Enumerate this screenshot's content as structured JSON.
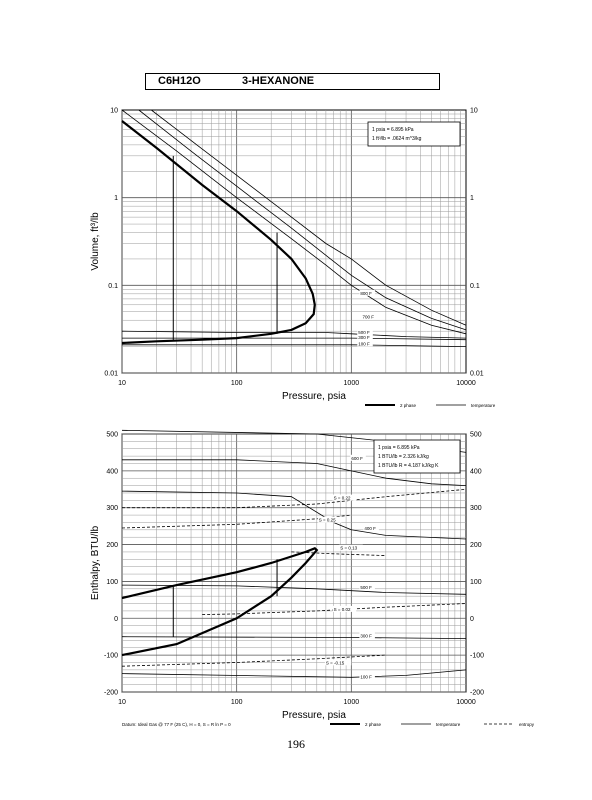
{
  "header": {
    "formula": "C6H12O",
    "name": "3-HEXANONE"
  },
  "page_number": "196",
  "chart_data": [
    {
      "type": "line",
      "ylabel": "Volume, ft^3/lb",
      "xlabel": "Pressure,  psia",
      "xscale": "log",
      "yscale": "log",
      "xlim": [
        10,
        10000
      ],
      "ylim": [
        0.01,
        10
      ],
      "x_ticks": [
        "10",
        "100",
        "1000",
        "10000"
      ],
      "y_ticks": [
        "0.01",
        "0.1",
        "1",
        "10"
      ],
      "grid": true,
      "conversion_box": [
        "1 psia  =  6.895 kPa",
        "1 ft^3/lb  =  .0624 m^3/kg"
      ],
      "legend": [
        {
          "label": "2 phase",
          "style": "thick"
        },
        {
          "label": "temperature",
          "style": "thin"
        }
      ],
      "series": [
        {
          "name": "2 phase",
          "points": [
            [
              10,
              7.5
            ],
            [
              20,
              3.7
            ],
            [
              50,
              1.4
            ],
            [
              100,
              0.7
            ],
            [
              200,
              0.33
            ],
            [
              300,
              0.2
            ],
            [
              400,
              0.12
            ],
            [
              460,
              0.08
            ],
            [
              480,
              0.06
            ],
            [
              470,
              0.047
            ],
            [
              400,
              0.037
            ],
            [
              300,
              0.031
            ],
            [
              200,
              0.028
            ],
            [
              100,
              0.025
            ],
            [
              50,
              0.024
            ],
            [
              20,
              0.023
            ],
            [
              10,
              0.022
            ]
          ]
        },
        {
          "name": "600 F",
          "points": [
            [
              10,
              10
            ],
            [
              30,
              3.4
            ],
            [
              100,
              1.0
            ],
            [
              300,
              0.34
            ],
            [
              600,
              0.17
            ],
            [
              1000,
              0.1
            ],
            [
              2000,
              0.056
            ],
            [
              5000,
              0.035
            ],
            [
              10000,
              0.028
            ]
          ]
        },
        {
          "name": "700 F",
          "points": [
            [
              14,
              10
            ],
            [
              40,
              3.4
            ],
            [
              100,
              1.35
            ],
            [
              300,
              0.45
            ],
            [
              600,
              0.22
            ],
            [
              1000,
              0.13
            ],
            [
              2000,
              0.072
            ],
            [
              5000,
              0.042
            ],
            [
              10000,
              0.031
            ]
          ]
        },
        {
          "name": "800 F",
          "points": [
            [
              18,
              10
            ],
            [
              50,
              3.6
            ],
            [
              100,
              1.8
            ],
            [
              300,
              0.6
            ],
            [
              600,
              0.3
            ],
            [
              1000,
              0.2
            ],
            [
              2000,
              0.1
            ],
            [
              5000,
              0.052
            ],
            [
              10000,
              0.035
            ]
          ]
        },
        {
          "name": "500 F",
          "points": [
            [
              10,
              0.03
            ],
            [
              100,
              0.029
            ],
            [
              300,
              0.029
            ],
            [
              600,
              0.029
            ],
            [
              1000,
              0.028
            ],
            [
              3000,
              0.026
            ],
            [
              10000,
              0.025
            ]
          ]
        },
        {
          "name": "300 F",
          "points": [
            [
              10,
              0.025
            ],
            [
              1000,
              0.025
            ],
            [
              10000,
              0.024
            ]
          ]
        },
        {
          "name": "100 F",
          "points": [
            [
              10,
              0.021
            ],
            [
              1000,
              0.021
            ],
            [
              10000,
              0.02
            ]
          ]
        }
      ],
      "verticals": [
        {
          "x": 28,
          "y": [
            0.023,
            3.0
          ]
        },
        {
          "x": 225,
          "y": [
            0.028,
            0.4
          ]
        }
      ],
      "annotations": [
        "800 F",
        "700 F",
        "500 F",
        "300 F",
        "100 F"
      ]
    },
    {
      "type": "line",
      "ylabel": "Enthalpy, BTU/lb",
      "xlabel": "Pressure,  psia",
      "xscale": "log",
      "yscale": "linear",
      "xlim": [
        10,
        10000
      ],
      "ylim": [
        -200,
        500
      ],
      "x_ticks": [
        "10",
        "100",
        "1000",
        "10000"
      ],
      "y_ticks": [
        "-200",
        "-100",
        "0",
        "100",
        "200",
        "300",
        "400",
        "500"
      ],
      "grid": true,
      "conversion_box": [
        "1 psia  =  6.895 kPa",
        "1 BTU/lb  =  2.326 kJ/kg",
        "1 BTU/lb  R  =  4.187 kJ/kg K"
      ],
      "footer_note": "Datum: Ideal Gas @ 77 F (25 C),  H = 0,  S = R ln P = 0",
      "legend": [
        {
          "label": "2 phase",
          "style": "thick"
        },
        {
          "label": "temperature",
          "style": "thin"
        },
        {
          "label": "entropy",
          "style": "dashed"
        }
      ],
      "series": [
        {
          "name": "2 phase",
          "points": [
            [
              10,
              -100
            ],
            [
              30,
              -70
            ],
            [
              100,
              0
            ],
            [
              200,
              60
            ],
            [
              300,
              110
            ],
            [
              400,
              150
            ],
            [
              470,
              175
            ],
            [
              500,
              185
            ],
            [
              480,
              190
            ],
            [
              400,
              180
            ],
            [
              200,
              150
            ],
            [
              100,
              125
            ],
            [
              30,
              90
            ],
            [
              10,
              55
            ]
          ]
        },
        {
          "name": "600 F",
          "points": [
            [
              10,
              430
            ],
            [
              100,
              430
            ],
            [
              500,
              420
            ],
            [
              1000,
              400
            ],
            [
              2000,
              380
            ],
            [
              5000,
              365
            ],
            [
              10000,
              360
            ]
          ]
        },
        {
          "name": "700 F",
          "points": [
            [
              10,
              510
            ],
            [
              500,
              500
            ],
            [
              2000,
              480
            ],
            [
              10000,
              450
            ]
          ]
        },
        {
          "name": "500 F",
          "points": [
            [
              10,
              345
            ],
            [
              100,
              340
            ],
            [
              300,
              330
            ],
            [
              700,
              260
            ],
            [
              1000,
              240
            ],
            [
              2000,
              225
            ],
            [
              10000,
              215
            ]
          ]
        },
        {
          "name": "400 F",
          "points": [
            [
              10,
              90
            ],
            [
              100,
              88
            ],
            [
              500,
              80
            ],
            [
              2000,
              70
            ],
            [
              10000,
              65
            ]
          ]
        },
        {
          "name": "300 F",
          "points": [
            [
              10,
              -50
            ],
            [
              1000,
              -52
            ],
            [
              10000,
              -55
            ]
          ]
        },
        {
          "name": "100 F",
          "points": [
            [
              10,
              -150
            ],
            [
              1000,
              -160
            ],
            [
              3000,
              -155
            ],
            [
              10000,
              -140
            ]
          ]
        },
        {
          "name": "S = 0.22",
          "style": "dashed",
          "points": [
            [
              10,
              300
            ],
            [
              100,
              300
            ],
            [
              500,
              310
            ],
            [
              2000,
              330
            ],
            [
              10000,
              350
            ]
          ]
        },
        {
          "name": "S = 0.25",
          "style": "dashed",
          "points": [
            [
              10,
              245
            ],
            [
              100,
              255
            ],
            [
              500,
              270
            ],
            [
              1000,
              280
            ]
          ]
        },
        {
          "name": "S = 0.13",
          "style": "dashed",
          "points": [
            [
              300,
              180
            ],
            [
              700,
              175
            ],
            [
              2000,
              170
            ]
          ]
        },
        {
          "name": "S = 0.02",
          "style": "dashed",
          "points": [
            [
              50,
              10
            ],
            [
              100,
              12
            ],
            [
              500,
              20
            ],
            [
              2000,
              30
            ],
            [
              10000,
              40
            ]
          ]
        },
        {
          "name": "S = -0.15",
          "style": "dashed",
          "points": [
            [
              10,
              -130
            ],
            [
              100,
              -120
            ],
            [
              500,
              -110
            ],
            [
              2000,
              -100
            ]
          ]
        }
      ],
      "verticals": [
        {
          "x": 28,
          "y": [
            -50,
            85
          ]
        },
        {
          "x": 225,
          "y": [
            60,
            160
          ]
        }
      ],
      "annotations": [
        "600 F",
        "S = 0.22",
        "S = 0.25",
        "400 F",
        "S = 0.13",
        "500 F",
        "S = 0.02",
        "300 F",
        "S = -0.15",
        "100 F"
      ]
    }
  ]
}
